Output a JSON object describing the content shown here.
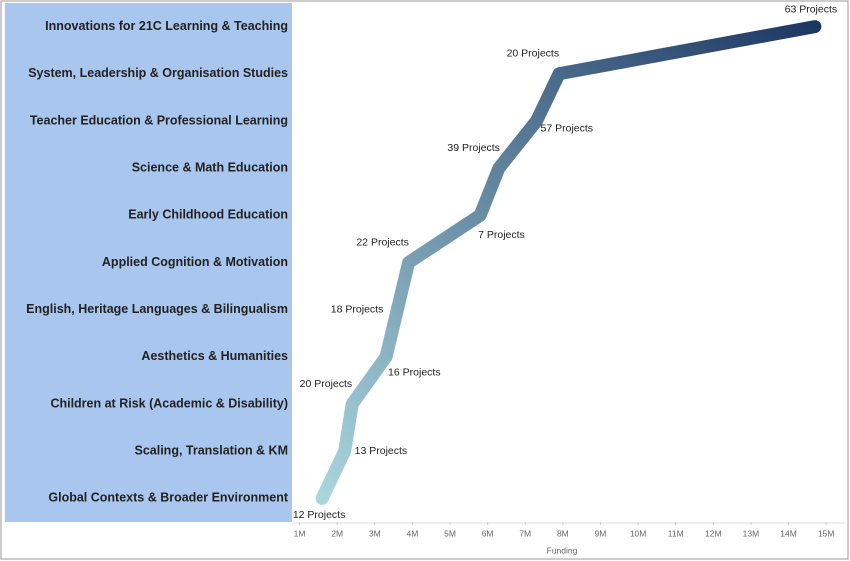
{
  "chart_data": {
    "type": "line",
    "x_label": "Funding",
    "categories": [
      "Innovations for 21C Learning & Teaching",
      "System, Leadership & Organisation Studies",
      "Teacher Education & Professional Learning",
      "Science & Math Education",
      "Early Childhood Education",
      "Applied Cognition & Motivation",
      "English, Heritage Languages & Bilingualism",
      "Aesthetics & Humanities",
      "Children at Risk (Academic & Disability)",
      "Scaling, Translation & KM",
      "Global Contexts & Broader Environment"
    ],
    "series": [
      {
        "values": [
          14700000,
          7900000,
          7300000,
          6300000,
          5800000,
          3900000,
          3600000,
          3300000,
          2400000,
          2200000,
          1600000
        ],
        "point_labels": [
          "63 Projects",
          "20 Projects",
          "57 Projects",
          "39 Projects",
          "7 Projects",
          "22 Projects",
          "18 Projects",
          "16 Projects",
          "20 Projects",
          "13 Projects",
          "12 Projects"
        ],
        "color_gradient": [
          "#a9d5dd",
          "#1d3763"
        ]
      }
    ],
    "xlim": [
      800000,
      15500000
    ],
    "xticks": [
      {
        "value": 1000000,
        "label": "1M"
      },
      {
        "value": 2000000,
        "label": "2M"
      },
      {
        "value": 3000000,
        "label": "3M"
      },
      {
        "value": 4000000,
        "label": "4M"
      },
      {
        "value": 5000000,
        "label": "5M"
      },
      {
        "value": 6000000,
        "label": "6M"
      },
      {
        "value": 7000000,
        "label": "7M"
      },
      {
        "value": 8000000,
        "label": "8M"
      },
      {
        "value": 9000000,
        "label": "9M"
      },
      {
        "value": 10000000,
        "label": "10M"
      },
      {
        "value": 11000000,
        "label": "11M"
      },
      {
        "value": 12000000,
        "label": "12M"
      },
      {
        "value": 13000000,
        "label": "13M"
      },
      {
        "value": 14000000,
        "label": "14M"
      },
      {
        "value": 15000000,
        "label": "15M"
      }
    ],
    "category_panel_color": "#a9c6ee"
  }
}
